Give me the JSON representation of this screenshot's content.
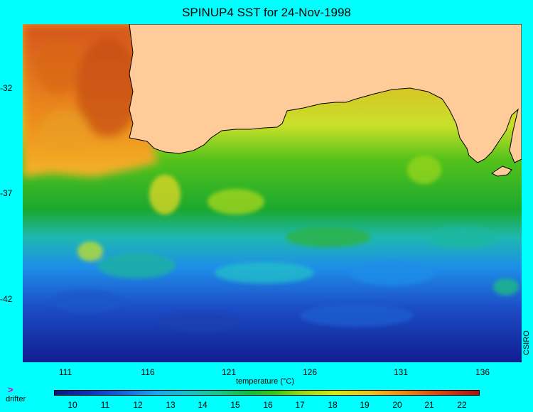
{
  "title": "SPINUP4 SST for 24-Nov-1998",
  "credit": "CSIRO",
  "y_axis_ticks": [
    "-32",
    "-37",
    "-42"
  ],
  "x_axis_ticks": [
    "111",
    "116",
    "121",
    "126",
    "131",
    "136"
  ],
  "colorbar": {
    "title": "temperature (°C)",
    "ticks": [
      "10",
      "11",
      "12",
      "13",
      "14",
      "15",
      "16",
      "17",
      "18",
      "19",
      "20",
      "21",
      "22"
    ]
  },
  "legend": {
    "marker": ">",
    "label": "drifter"
  },
  "colors": {
    "background": "#00ffff",
    "land": "#ffcc99"
  }
}
